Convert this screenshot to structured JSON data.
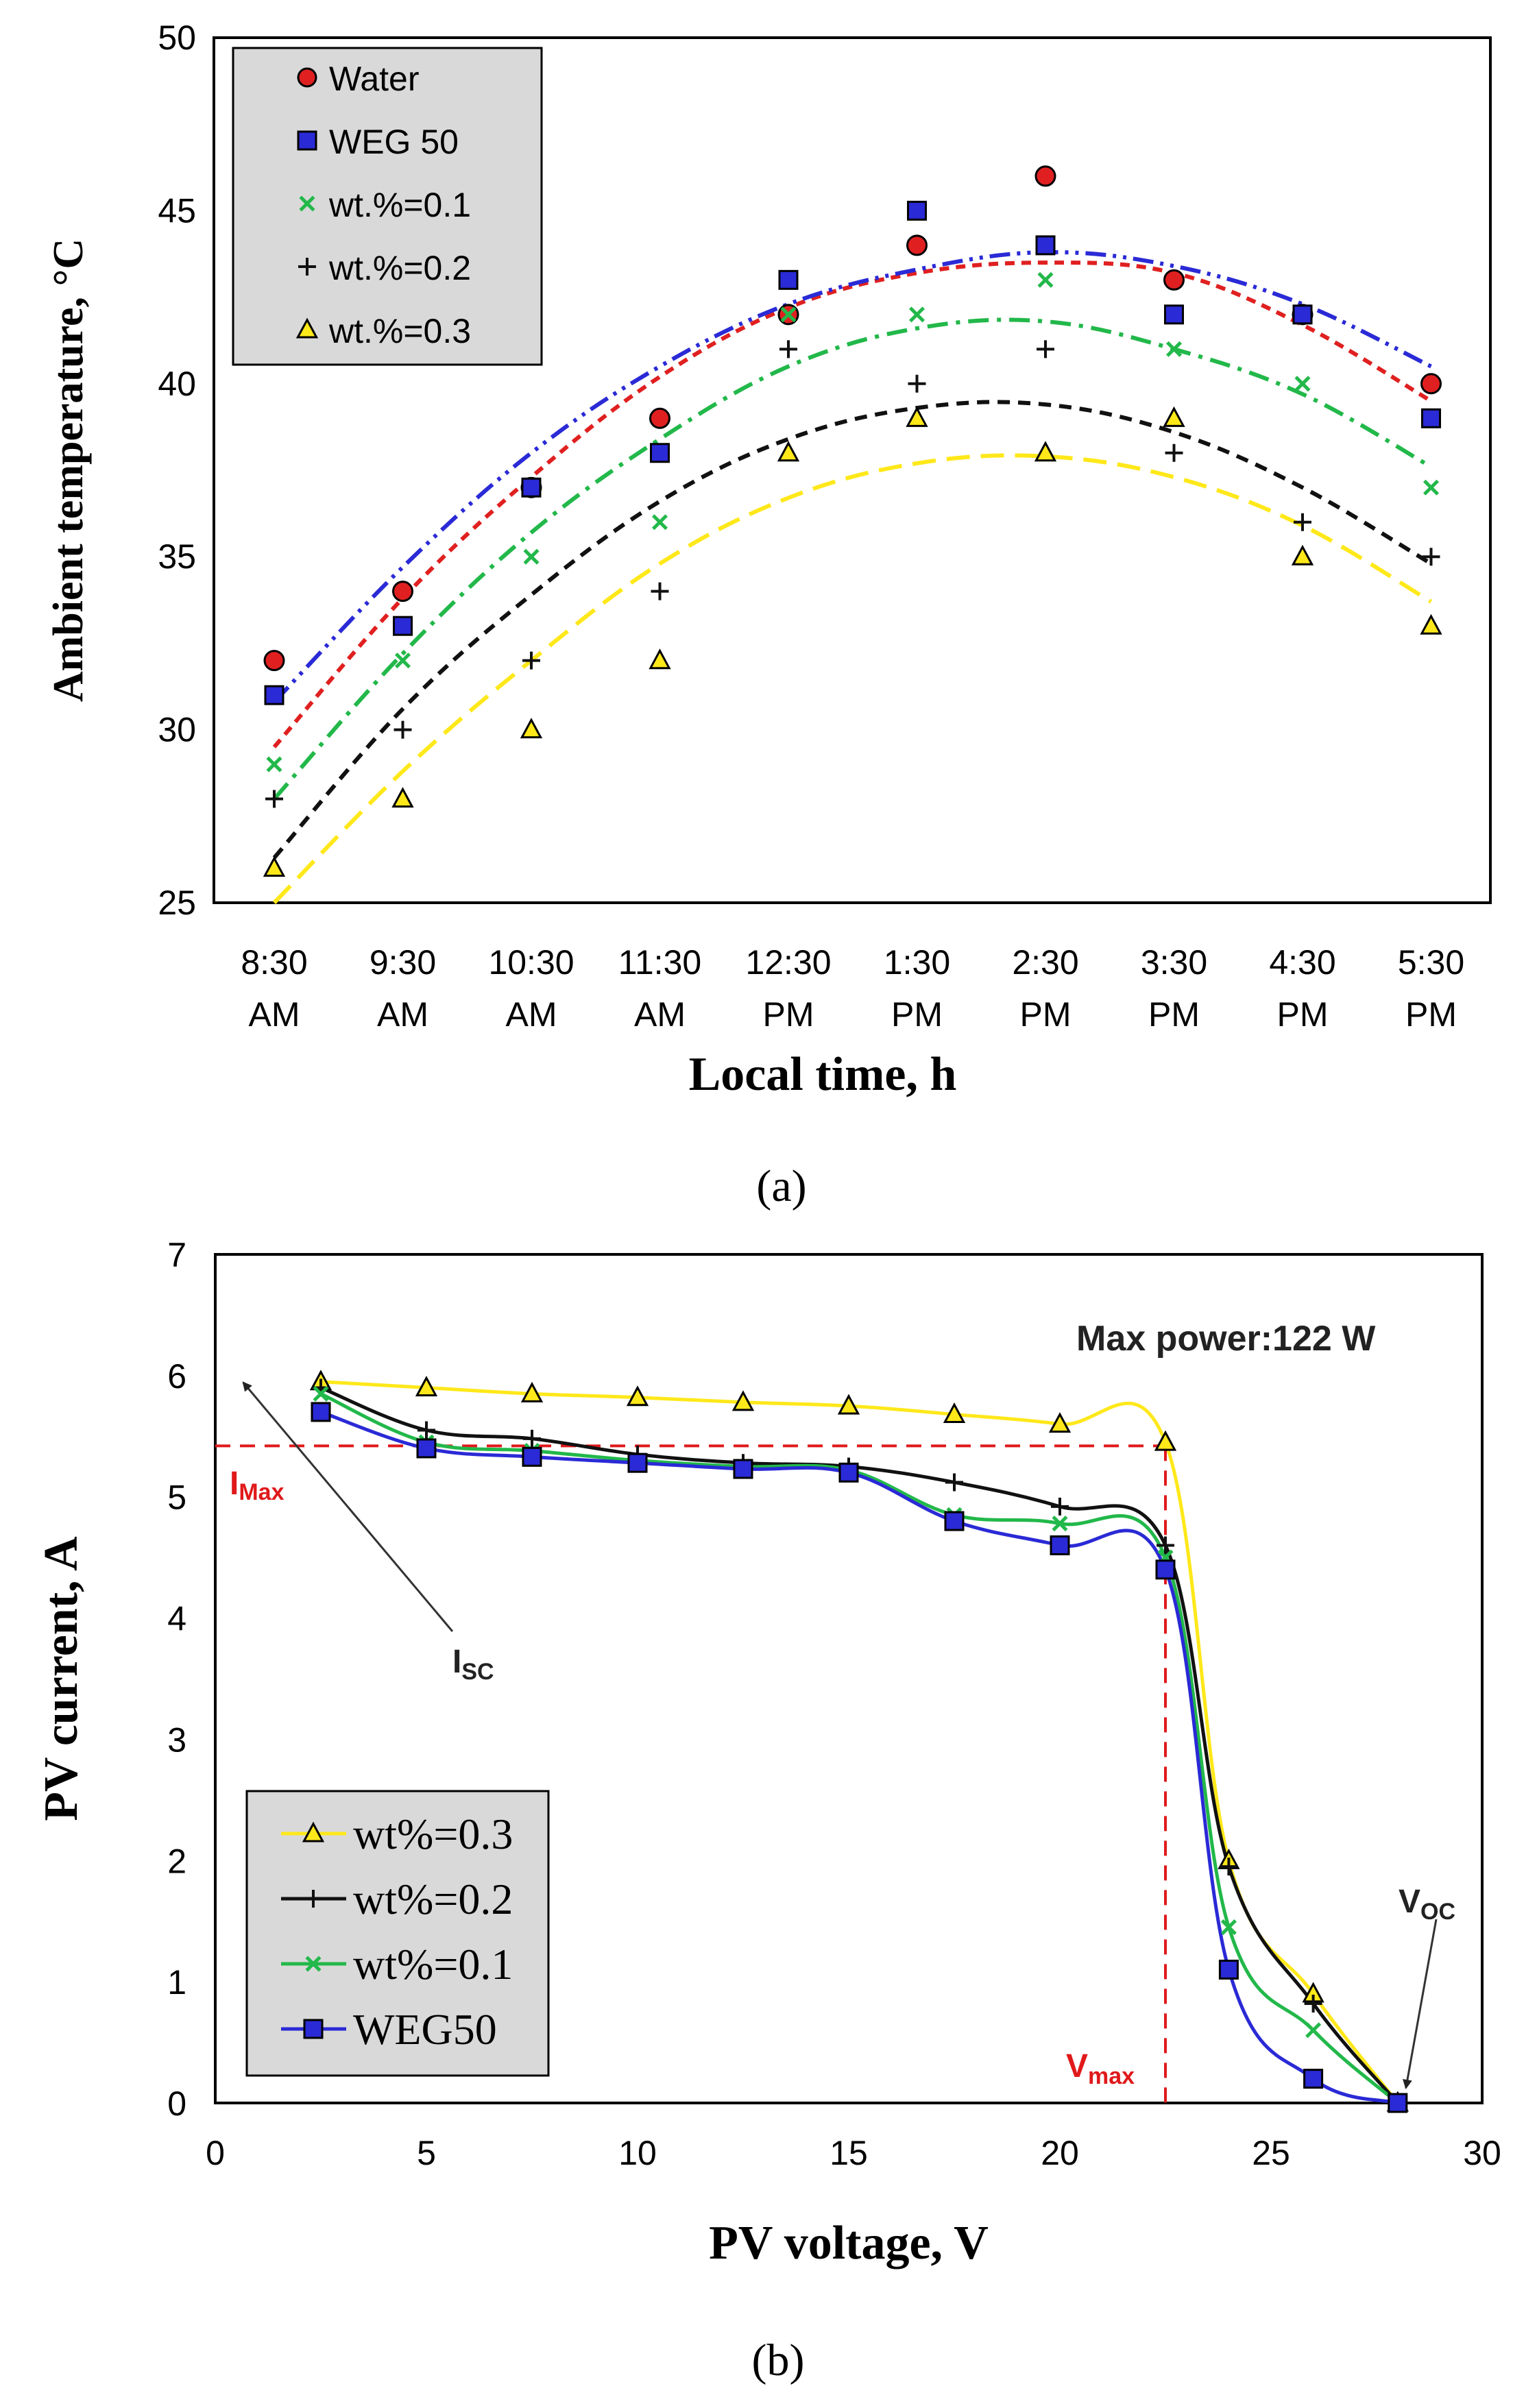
{
  "colors": {
    "water": "#e02020",
    "weg50": "#2a2ad6",
    "wt01": "#22b84a",
    "wt02": "#111111",
    "wt03": "#ffe81a",
    "red_annot": "#e0191b",
    "legend_bg": "#d9d9d9"
  },
  "chart_data": [
    {
      "id": "a",
      "type": "scatter",
      "caption": "(a)",
      "xlabel": "Local time, h",
      "ylabel": "Ambient temperature, °C",
      "ylim": [
        25,
        50
      ],
      "yticks": [
        25,
        30,
        35,
        40,
        45,
        50
      ],
      "categories": [
        [
          "8:30",
          "AM"
        ],
        [
          "9:30",
          "AM"
        ],
        [
          "10:30",
          "AM"
        ],
        [
          "11:30",
          "AM"
        ],
        [
          "12:30",
          "PM"
        ],
        [
          "1:30",
          "PM"
        ],
        [
          "2:30",
          "PM"
        ],
        [
          "3:30",
          "PM"
        ],
        [
          "4:30",
          "PM"
        ],
        [
          "5:30",
          "PM"
        ]
      ],
      "legend_position": "top-left",
      "series": [
        {
          "name": "Water",
          "marker": "circle",
          "color_key": "water",
          "values": [
            32,
            34,
            37,
            39,
            42,
            44,
            46,
            43,
            42,
            40
          ],
          "trend": {
            "style": "short-dash",
            "values": [
              29.5,
              33.8,
              37.3,
              40.2,
              42.2,
              43.2,
              43.5,
              43.2,
              41.7,
              39.5
            ]
          }
        },
        {
          "name": "WEG 50",
          "marker": "square",
          "color_key": "weg50",
          "values": [
            31,
            33,
            37,
            38,
            43,
            45,
            44,
            42,
            42,
            39
          ],
          "trend": {
            "style": "dash-dot-dot",
            "values": [
              30.8,
              34.7,
              38,
              40.5,
              42.3,
              43.3,
              43.8,
              43.4,
              42.3,
              40.5
            ]
          }
        },
        {
          "name": "wt.%=0.1",
          "marker": "x",
          "color_key": "wt01",
          "values": [
            29,
            32,
            35,
            36,
            42,
            42,
            43,
            41,
            40,
            37
          ],
          "trend": {
            "style": "dash-dot",
            "values": [
              28,
              32.2,
              35.7,
              38.4,
              40.5,
              41.6,
              41.8,
              41,
              39.7,
              37.6
            ]
          }
        },
        {
          "name": "wt.%=0.2",
          "marker": "plus",
          "color_key": "wt02",
          "values": [
            28,
            30,
            32,
            34,
            41,
            40,
            41,
            38,
            36,
            35
          ],
          "trend": {
            "style": "dash",
            "values": [
              26.3,
              30.6,
              33.9,
              36.6,
              38.4,
              39.3,
              39.4,
              38.6,
              37,
              34.8
            ]
          }
        },
        {
          "name": "wt.%=0.3",
          "marker": "triangle",
          "color_key": "wt03",
          "values": [
            26,
            28,
            30,
            32,
            38,
            39,
            38,
            39,
            35,
            33
          ],
          "trend": {
            "style": "long-dash",
            "values": [
              25,
              28.8,
              32,
              34.8,
              36.7,
              37.7,
              37.9,
              37.3,
              35.9,
              33.7
            ]
          }
        }
      ]
    },
    {
      "id": "b",
      "type": "line",
      "caption": "(b)",
      "xlabel": "PV voltage, V",
      "ylabel": "PV current, A",
      "xlim": [
        0,
        30
      ],
      "ylim": [
        0,
        7
      ],
      "xticks": [
        0,
        5,
        10,
        15,
        20,
        25,
        30
      ],
      "yticks": [
        0,
        1,
        2,
        3,
        4,
        5,
        6,
        7
      ],
      "legend_position": "bottom-left",
      "annotation_max_power": "Max power:122 W",
      "label_isc": "I",
      "label_isc_sub": "SC",
      "label_imax": "I",
      "label_imax_sub": "Max",
      "label_vmax": "V",
      "label_vmax_sub": "max",
      "label_voc": "V",
      "label_voc_sub": "OC",
      "isc_point": [
        0.5,
        6.0
      ],
      "max_power_point": [
        22.5,
        5.42
      ],
      "voc_point": [
        28,
        0
      ],
      "series": [
        {
          "name": "wt%=0.3",
          "marker": "triangle",
          "color_key": "wt03",
          "x": [
            2.5,
            5,
            7.5,
            10,
            12.5,
            15,
            17.5,
            20,
            22.5,
            24,
            26,
            28
          ],
          "y": [
            5.95,
            5.9,
            5.85,
            5.82,
            5.78,
            5.75,
            5.68,
            5.6,
            5.45,
            2.0,
            0.9,
            0.0
          ]
        },
        {
          "name": "wt%=0.2",
          "marker": "plus",
          "color_key": "wt02",
          "x": [
            2.5,
            5,
            7.5,
            10,
            12.5,
            15,
            17.5,
            20,
            22.5,
            24,
            26,
            28
          ],
          "y": [
            5.9,
            5.55,
            5.48,
            5.35,
            5.28,
            5.25,
            5.12,
            4.92,
            4.6,
            1.95,
            0.82,
            0.0
          ]
        },
        {
          "name": "wt%=0.1",
          "marker": "x",
          "color_key": "wt01",
          "x": [
            2.5,
            5,
            7.5,
            10,
            12.5,
            15,
            17.5,
            20,
            22.5,
            24,
            26,
            28
          ],
          "y": [
            5.85,
            5.45,
            5.38,
            5.3,
            5.25,
            5.22,
            4.85,
            4.78,
            4.5,
            1.45,
            0.6,
            0.0
          ]
        },
        {
          "name": "WEG50",
          "marker": "square",
          "color_key": "weg50",
          "x": [
            2.5,
            5,
            7.5,
            10,
            12.5,
            15,
            17.5,
            20,
            22.5,
            24,
            26,
            28
          ],
          "y": [
            5.7,
            5.4,
            5.33,
            5.28,
            5.23,
            5.2,
            4.8,
            4.6,
            4.4,
            1.1,
            0.2,
            0.0
          ]
        }
      ]
    }
  ]
}
